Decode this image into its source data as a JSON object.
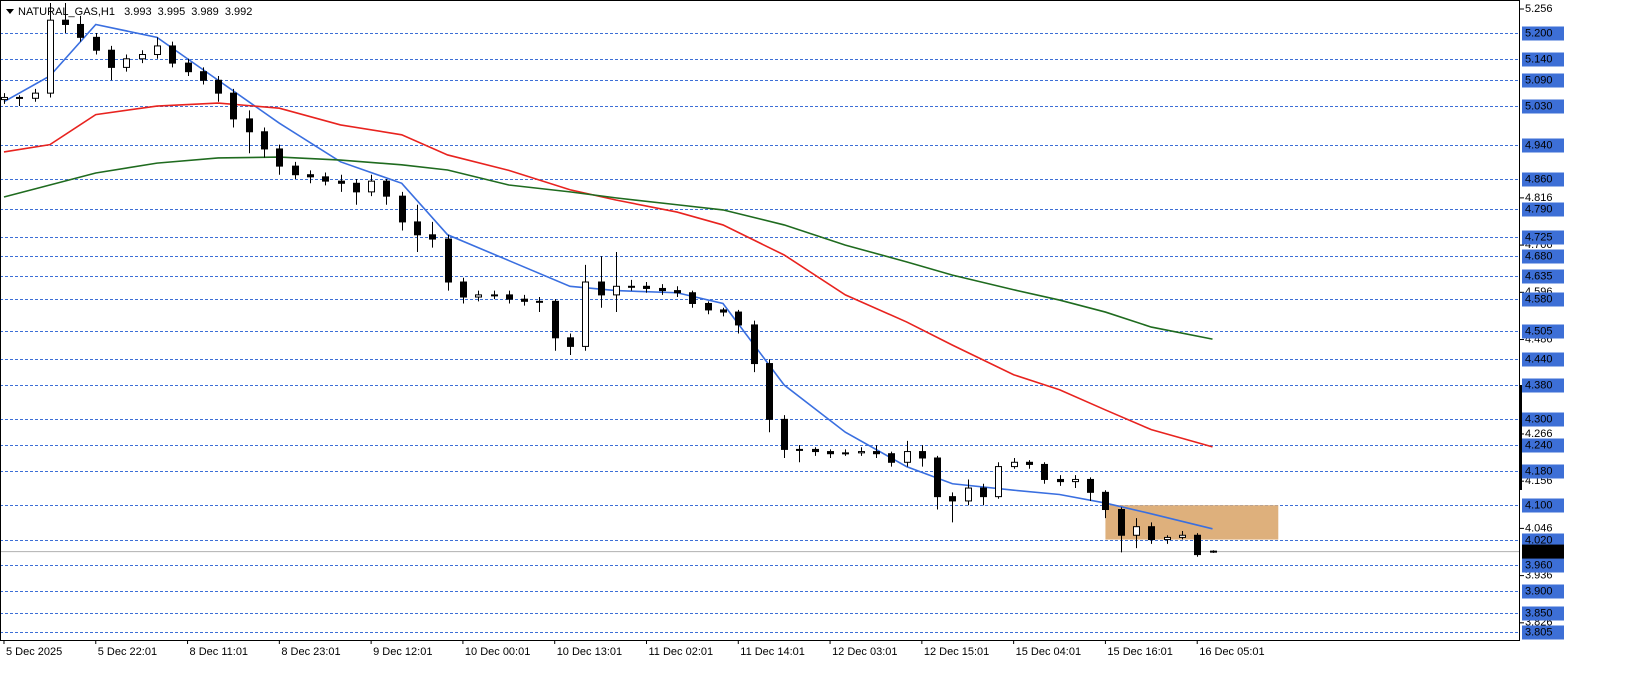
{
  "chart_data": {
    "type": "candlestick",
    "title": "NATURAL_GAS,H1",
    "header_ohlc": [
      3.993,
      3.995,
      3.989,
      3.992
    ],
    "categories": [
      "5 Dec 2025",
      null,
      null,
      null,
      null,
      null,
      "5 Dec 22:01",
      null,
      null,
      null,
      null,
      null,
      "8 Dec 11:01",
      null,
      null,
      null,
      null,
      null,
      "8 Dec 23:01",
      null,
      null,
      null,
      null,
      null,
      "9 Dec 12:01",
      null,
      null,
      null,
      null,
      null,
      "10 Dec 00:01",
      null,
      null,
      null,
      null,
      null,
      "10 Dec 13:01",
      null,
      null,
      null,
      null,
      null,
      "11 Dec 02:01",
      null,
      null,
      null,
      null,
      null,
      "11 Dec 14:01",
      null,
      null,
      null,
      null,
      null,
      "12 Dec 03:01",
      null,
      null,
      null,
      null,
      null,
      "12 Dec 15:01",
      null,
      null,
      null,
      null,
      null,
      "15 Dec 04:01",
      null,
      null,
      null,
      null,
      null,
      "15 Dec 16:01",
      null,
      null,
      null,
      null,
      null,
      "16 Dec 05:01",
      null
    ],
    "candles": [
      [
        5.045,
        5.06,
        5.035,
        5.05
      ],
      [
        5.05,
        5.055,
        5.03,
        5.048
      ],
      [
        5.048,
        5.07,
        5.04,
        5.06
      ],
      [
        5.06,
        5.27,
        5.05,
        5.23
      ],
      [
        5.23,
        5.27,
        5.2,
        5.22
      ],
      [
        5.22,
        5.24,
        5.18,
        5.19
      ],
      [
        5.19,
        5.2,
        5.15,
        5.16
      ],
      [
        5.16,
        5.17,
        5.09,
        5.12
      ],
      [
        5.12,
        5.15,
        5.11,
        5.14
      ],
      [
        5.14,
        5.16,
        5.13,
        5.15
      ],
      [
        5.15,
        5.19,
        5.14,
        5.17
      ],
      [
        5.17,
        5.18,
        5.12,
        5.13
      ],
      [
        5.13,
        5.14,
        5.1,
        5.11
      ],
      [
        5.11,
        5.12,
        5.08,
        5.09
      ],
      [
        5.09,
        5.1,
        5.04,
        5.06
      ],
      [
        5.06,
        5.07,
        4.98,
        5.0
      ],
      [
        5.0,
        5.02,
        4.92,
        4.97
      ],
      [
        4.97,
        4.98,
        4.91,
        4.93
      ],
      [
        4.93,
        4.94,
        4.87,
        4.89
      ],
      [
        4.89,
        4.9,
        4.86,
        4.87
      ],
      [
        4.87,
        4.88,
        4.85,
        4.865
      ],
      [
        4.865,
        4.875,
        4.845,
        4.855
      ],
      [
        4.855,
        4.87,
        4.83,
        4.85
      ],
      [
        4.85,
        4.86,
        4.8,
        4.83
      ],
      [
        4.83,
        4.87,
        4.82,
        4.855
      ],
      [
        4.855,
        4.86,
        4.8,
        4.82
      ],
      [
        4.82,
        4.83,
        4.74,
        4.76
      ],
      [
        4.76,
        4.8,
        4.69,
        4.73
      ],
      [
        4.73,
        4.76,
        4.7,
        4.72
      ],
      [
        4.72,
        4.73,
        4.6,
        4.62
      ],
      [
        4.62,
        4.63,
        4.57,
        4.585
      ],
      [
        4.585,
        4.6,
        4.575,
        4.59
      ],
      [
        4.59,
        4.6,
        4.58,
        4.59
      ],
      [
        4.59,
        4.6,
        4.57,
        4.58
      ],
      [
        4.58,
        4.59,
        4.565,
        4.575
      ],
      [
        4.575,
        4.585,
        4.55,
        4.575
      ],
      [
        4.575,
        4.58,
        4.46,
        4.49
      ],
      [
        4.49,
        4.5,
        4.45,
        4.47
      ],
      [
        4.47,
        4.66,
        4.46,
        4.62
      ],
      [
        4.62,
        4.68,
        4.56,
        4.59
      ],
      [
        4.59,
        4.69,
        4.55,
        4.61
      ],
      [
        4.61,
        4.625,
        4.6,
        4.61
      ],
      [
        4.61,
        4.62,
        4.595,
        4.605
      ],
      [
        4.605,
        4.615,
        4.59,
        4.6
      ],
      [
        4.6,
        4.61,
        4.585,
        4.595
      ],
      [
        4.595,
        4.6,
        4.56,
        4.57
      ],
      [
        4.57,
        4.575,
        4.545,
        4.555
      ],
      [
        4.555,
        4.56,
        4.54,
        4.55
      ],
      [
        4.55,
        4.555,
        4.5,
        4.52
      ],
      [
        4.52,
        4.53,
        4.41,
        4.43
      ],
      [
        4.43,
        4.44,
        4.27,
        4.3
      ],
      [
        4.3,
        4.31,
        4.21,
        4.23
      ],
      [
        4.23,
        4.24,
        4.2,
        4.23
      ],
      [
        4.23,
        4.235,
        4.215,
        4.225
      ],
      [
        4.225,
        4.23,
        4.21,
        4.22
      ],
      [
        4.22,
        4.23,
        4.215,
        4.222
      ],
      [
        4.222,
        4.235,
        4.215,
        4.225
      ],
      [
        4.225,
        4.24,
        4.21,
        4.22
      ],
      [
        4.22,
        4.225,
        4.19,
        4.2
      ],
      [
        4.2,
        4.25,
        4.19,
        4.225
      ],
      [
        4.225,
        4.24,
        4.19,
        4.21
      ],
      [
        4.21,
        4.215,
        4.09,
        4.12
      ],
      [
        4.12,
        4.13,
        4.06,
        4.11
      ],
      [
        4.11,
        4.16,
        4.1,
        4.14
      ],
      [
        4.14,
        4.15,
        4.1,
        4.12
      ],
      [
        4.12,
        4.2,
        4.115,
        4.19
      ],
      [
        4.19,
        4.21,
        4.185,
        4.2
      ],
      [
        4.2,
        4.205,
        4.185,
        4.195
      ],
      [
        4.195,
        4.2,
        4.15,
        4.16
      ],
      [
        4.16,
        4.17,
        4.145,
        4.155
      ],
      [
        4.155,
        4.17,
        4.14,
        4.16
      ],
      [
        4.16,
        4.165,
        4.11,
        4.13
      ],
      [
        4.13,
        4.135,
        4.07,
        4.09
      ],
      [
        4.09,
        4.095,
        3.99,
        4.03
      ],
      [
        4.03,
        4.07,
        4.0,
        4.05
      ],
      [
        4.05,
        4.06,
        4.01,
        4.02
      ],
      [
        4.02,
        4.03,
        4.01,
        4.025
      ],
      [
        4.025,
        4.04,
        4.02,
        4.03
      ],
      [
        4.03,
        4.035,
        3.98,
        3.985
      ],
      [
        3.993,
        3.995,
        3.989,
        3.992
      ]
    ],
    "series": [
      {
        "color": "#3a6fe0",
        "x": [
          0,
          3,
          6,
          10,
          14,
          18,
          22,
          26,
          29,
          33,
          37,
          40,
          44,
          47,
          51,
          55,
          59,
          62,
          66,
          69,
          72,
          75,
          79
        ],
        "values": [
          5.04,
          5.1,
          5.22,
          5.19,
          5.09,
          4.99,
          4.9,
          4.85,
          4.73,
          4.67,
          4.61,
          4.6,
          4.595,
          4.57,
          4.38,
          4.27,
          4.19,
          4.15,
          4.135,
          4.125,
          4.105,
          4.08,
          4.045
        ]
      },
      {
        "color": "#e8231f",
        "x": [
          0,
          3,
          6,
          10,
          14,
          18,
          22,
          26,
          29,
          33,
          37,
          40,
          44,
          47,
          51,
          55,
          59,
          62,
          66,
          69,
          72,
          75,
          79
        ],
        "values": [
          4.923,
          4.94,
          5.01,
          5.03,
          5.037,
          5.025,
          4.986,
          4.963,
          4.916,
          4.88,
          4.835,
          4.811,
          4.783,
          4.753,
          4.683,
          4.59,
          4.527,
          4.473,
          4.404,
          4.369,
          4.322,
          4.276,
          4.236
        ]
      },
      {
        "color": "#1f6b1f",
        "x": [
          0,
          3,
          6,
          10,
          14,
          18,
          22,
          26,
          29,
          33,
          37,
          40,
          44,
          47,
          51,
          55,
          59,
          62,
          66,
          69,
          72,
          75,
          79
        ],
        "values": [
          4.818,
          4.846,
          4.874,
          4.897,
          4.909,
          4.911,
          4.904,
          4.893,
          4.881,
          4.846,
          4.83,
          4.816,
          4.8,
          4.788,
          4.753,
          4.706,
          4.667,
          4.636,
          4.602,
          4.578,
          4.55,
          4.515,
          4.487
        ]
      }
    ],
    "zone": {
      "x": [
        72,
        83.3
      ],
      "y": [
        4.02,
        4.1
      ],
      "color": "#deb07c"
    },
    "levels": [
      {
        "value": 5.2,
        "label": "5.200"
      },
      {
        "value": 5.14,
        "label": "5.140"
      },
      {
        "value": 5.09,
        "label": "5.090"
      },
      {
        "value": 5.03,
        "label": "5.030"
      },
      {
        "value": 4.94,
        "label": "4.940"
      },
      {
        "value": 4.86,
        "label": "4.860"
      },
      {
        "value": 4.79,
        "label": "4.790"
      },
      4.725,
      {
        "value": 4.68,
        "label": "4.680"
      },
      4.635,
      {
        "value": 4.58,
        "label": "4.580"
      },
      4.505,
      {
        "value": 4.44,
        "label": "4.440"
      },
      {
        "value": 4.38,
        "label": "4.380"
      },
      {
        "value": 4.3,
        "label": "4.300"
      },
      {
        "value": 4.24,
        "label": "4.240"
      },
      {
        "value": 4.18,
        "label": "4.180"
      },
      {
        "value": 4.1,
        "label": "4.100"
      },
      {
        "value": 4.02,
        "label": "4.020"
      },
      {
        "value": 3.96,
        "label": "3.960"
      },
      {
        "value": 3.9,
        "label": "3.900"
      },
      {
        "value": 3.85,
        "label": "3.850"
      },
      3.805
    ],
    "level_color": "#3d6fd6",
    "last_price": 3.992,
    "xlim": [
      -0.26,
      99.1
    ],
    "ylim": [
      3.786,
      5.277
    ],
    "yticks": [
      5.256,
      4.816,
      4.706,
      4.596,
      4.486,
      4.266,
      4.156,
      4.046,
      3.936,
      3.826
    ]
  }
}
